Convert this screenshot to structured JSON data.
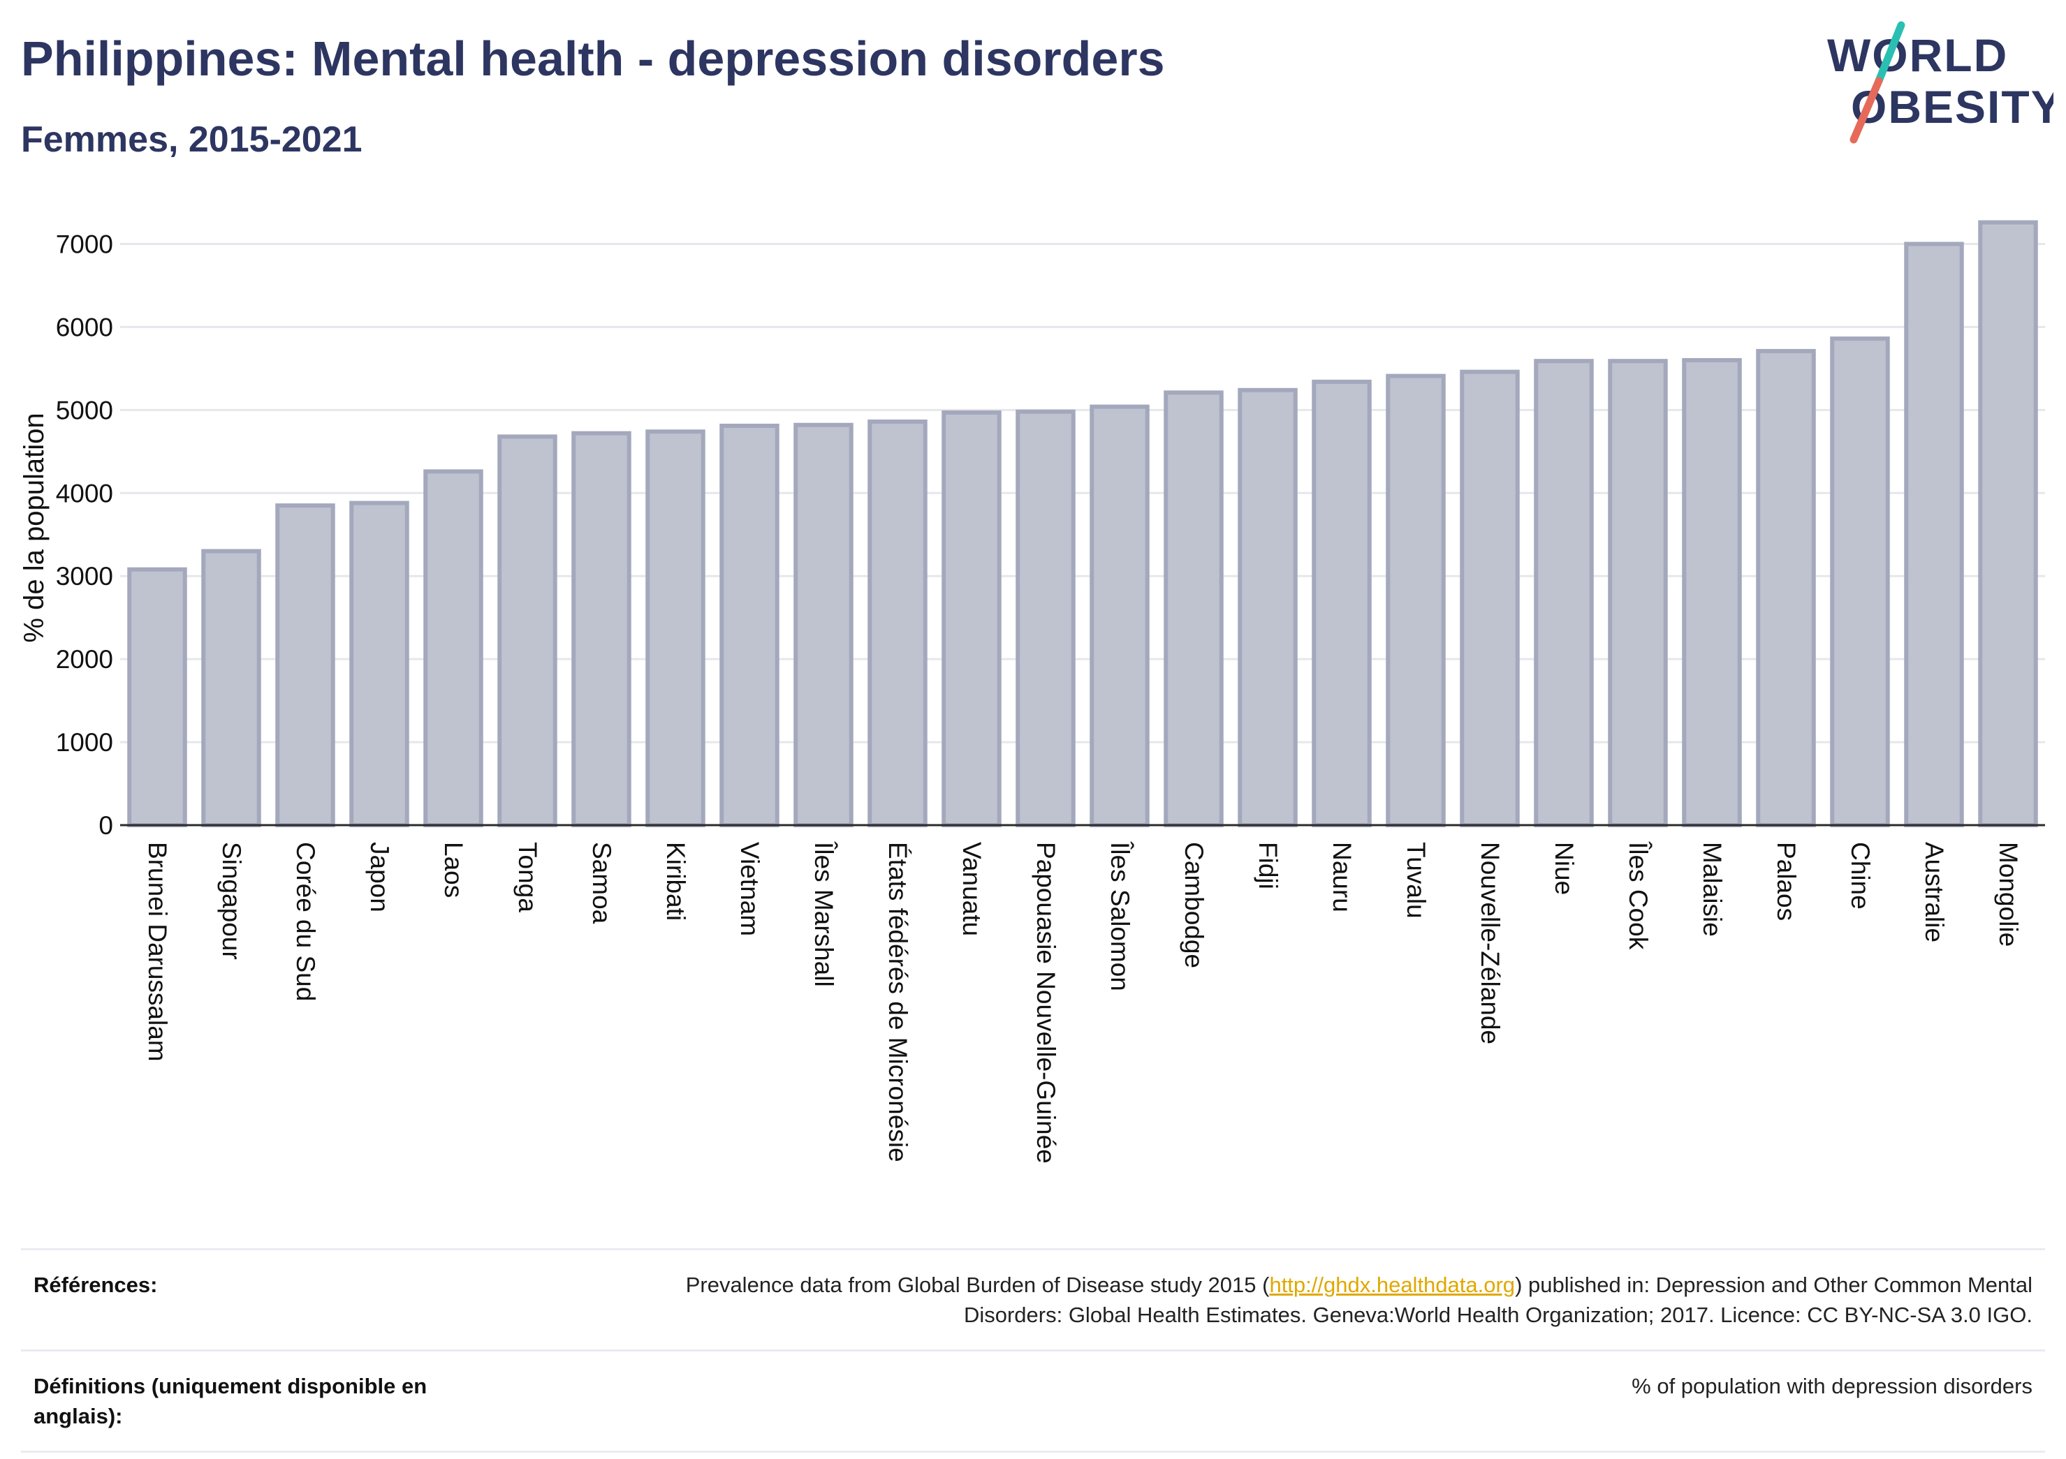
{
  "title": "Philippines: Mental health - depression disorders",
  "subtitle": "Femmes, 2015-2021",
  "logo": {
    "line1": "WORLD",
    "line2": "OBESITY"
  },
  "colors": {
    "title": "#2d3561",
    "bar_fill": "#bfc2cf",
    "bar_stroke": "#a3a8bc",
    "grid": "#e6e7ec",
    "link": "#e0a800",
    "logo_teal": "#2bbfb3",
    "logo_coral": "#e66a5a"
  },
  "chart_data": {
    "type": "bar",
    "ylabel": "% de la population",
    "xlabel": "",
    "ylim": [
      0,
      7500
    ],
    "yticks": [
      0,
      1000,
      2000,
      3000,
      4000,
      5000,
      6000,
      7000
    ],
    "grid": true,
    "categories": [
      "Brunei Darussalam",
      "Singapour",
      "Corée du Sud",
      "Japon",
      "Laos",
      "Tonga",
      "Samoa",
      "Kiribati",
      "Vietnam",
      "Îles Marshall",
      "États fédérés de Micronésie",
      "Vanuatu",
      "Papouasie Nouvelle-Guinée",
      "Îles Salomon",
      "Cambodge",
      "Fidji",
      "Nauru",
      "Tuvalu",
      "Nouvelle-Zélande",
      "Niue",
      "Îles Cook",
      "Malaisie",
      "Palaos",
      "Chine",
      "Australie",
      "Mongolie"
    ],
    "values": [
      3080,
      3300,
      3850,
      3880,
      4260,
      4680,
      4720,
      4740,
      4810,
      4820,
      4860,
      4970,
      4980,
      5040,
      5210,
      5240,
      5340,
      5410,
      5460,
      5590,
      5590,
      5600,
      5710,
      5860,
      7000,
      7260
    ]
  },
  "footer": {
    "references_label": "Références:",
    "references_text_before": "Prevalence data from Global Burden of Disease study 2015 (",
    "references_link": "http://ghdx.healthdata.org",
    "references_text_after": ") published in: Depression and Other Common Mental Disorders: Global Health Estimates. Geneva:World Health Organization; 2017. Licence: CC BY-NC-SA 3.0 IGO.",
    "definitions_label": "Définitions (uniquement disponible en anglais):",
    "definitions_text": "% of population with depression disorders"
  }
}
